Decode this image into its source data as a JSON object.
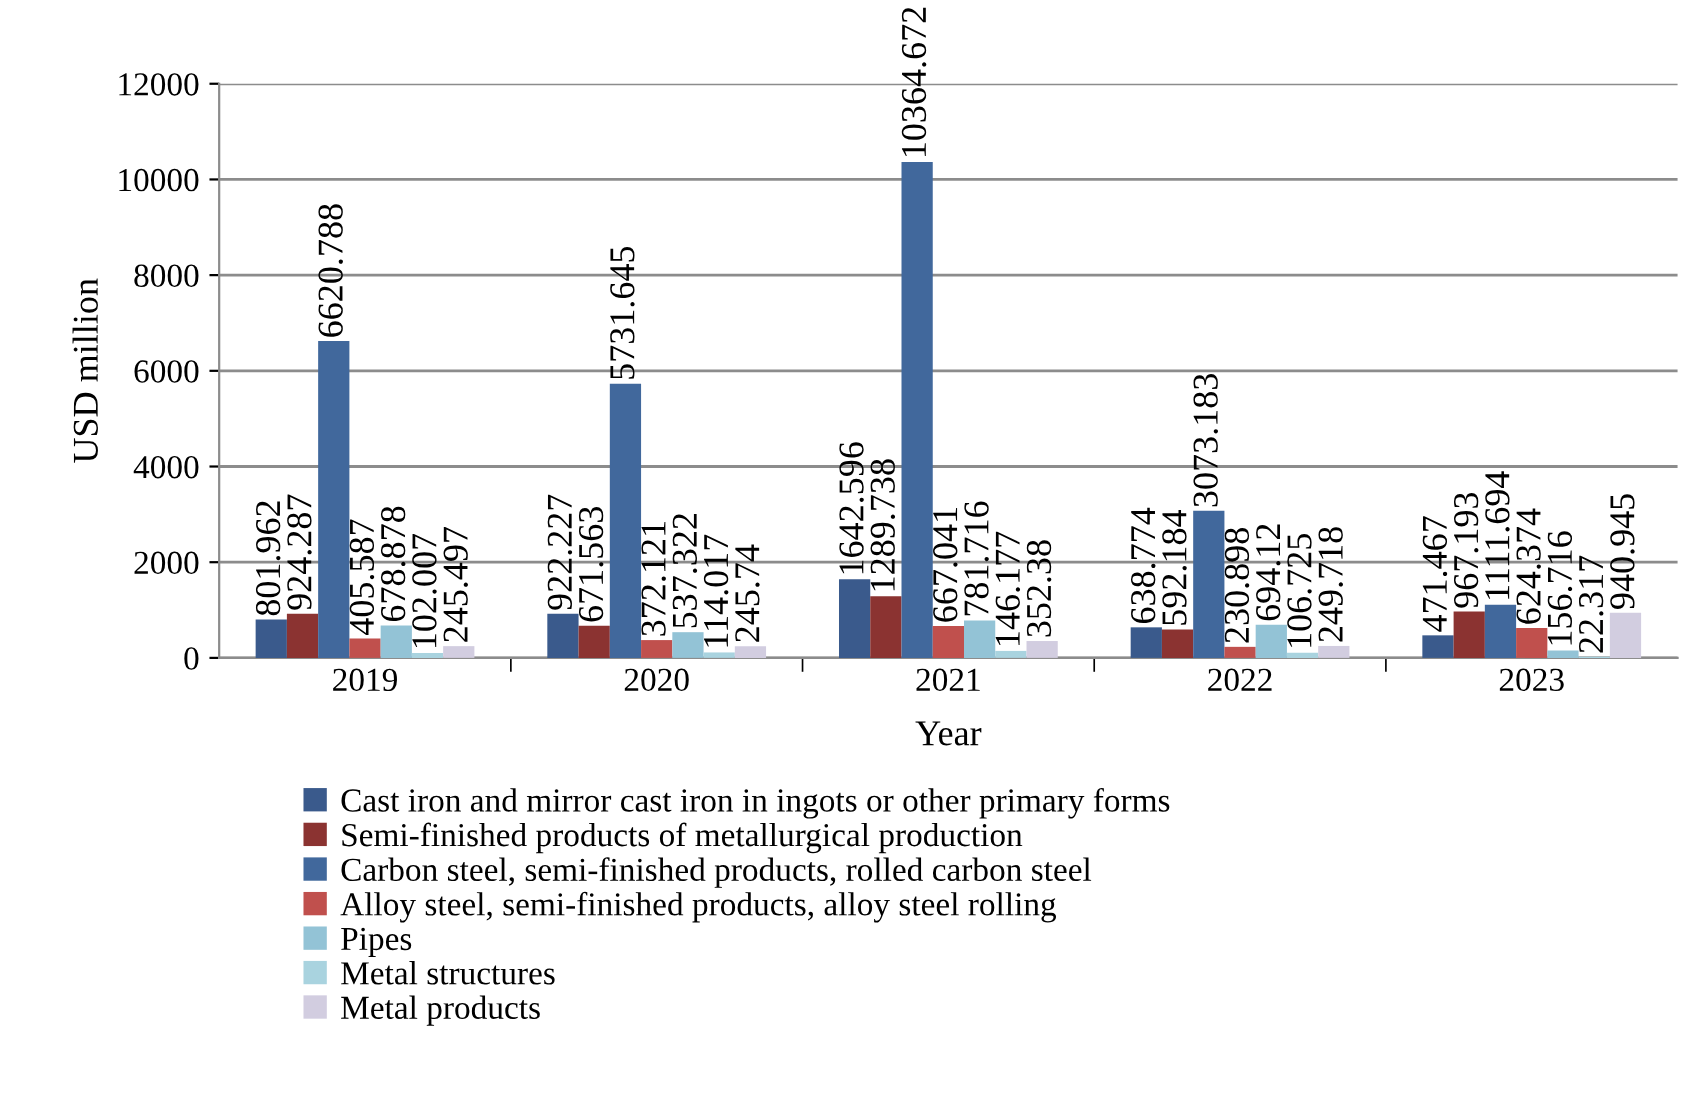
{
  "chart_data": {
    "type": "bar",
    "xlabel": "Year",
    "ylabel": "USD million",
    "categories": [
      "2019",
      "2020",
      "2021",
      "2022",
      "2023"
    ],
    "series": [
      {
        "name": "Cast iron and mirror cast iron in ingots or other primary forms",
        "color": "#3a5a8c",
        "values": [
          801.962,
          922.227,
          1642.596,
          638.774,
          471.467
        ]
      },
      {
        "name": "Semi-finished products of metallurgical production",
        "color": "#8b3331",
        "values": [
          924.287,
          671.563,
          1289.738,
          592.184,
          967.193
        ]
      },
      {
        "name": "Carbon steel, semi-finished products, rolled carbon steel",
        "color": "#41689c",
        "values": [
          6620.788,
          5731.645,
          10364.672,
          3073.183,
          1111.694
        ]
      },
      {
        "name": "Alloy steel, semi-finished products, alloy steel rolling",
        "color": "#c0504d",
        "values": [
          405.587,
          372.121,
          667.041,
          230.898,
          624.374
        ]
      },
      {
        "name": "Pipes",
        "color": "#93c3d6",
        "values": [
          678.878,
          537.322,
          781.716,
          694.12,
          156.716
        ]
      },
      {
        "name": "Metal structures",
        "color": "#a9d3df",
        "values": [
          102.007,
          114.017,
          146.177,
          106.725,
          22.317
        ]
      },
      {
        "name": "Metal products",
        "color": "#d2cde0",
        "values": [
          245.497,
          245.74,
          352.38,
          249.718,
          940.945
        ]
      }
    ],
    "ylim": [
      0,
      12000
    ],
    "yticks": [
      0,
      2000,
      4000,
      6000,
      8000,
      10000,
      12000
    ],
    "grid": "y",
    "legend": "bottom",
    "data_labels": true
  }
}
